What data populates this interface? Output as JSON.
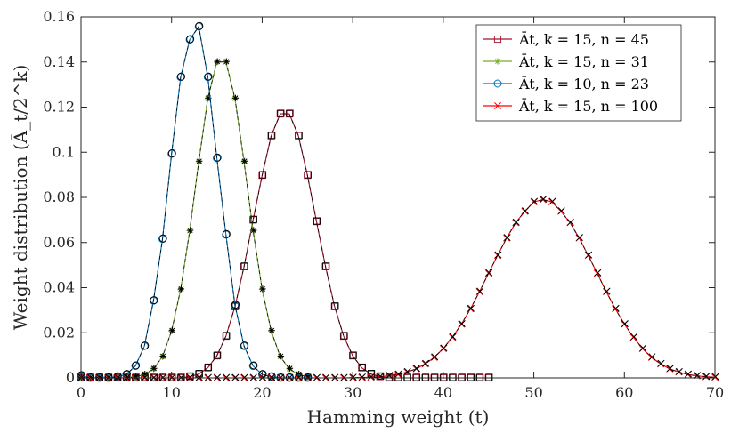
{
  "chart_data": {
    "type": "line",
    "xlabel": "Hamming weight (t)",
    "ylabel": "Weight distribution (Ā_t/2^k)",
    "xlim": [
      0,
      70
    ],
    "ylim": [
      0,
      0.16
    ],
    "xticks": [
      0,
      10,
      20,
      30,
      40,
      50,
      60,
      70
    ],
    "yticks": [
      0,
      0.02,
      0.04,
      0.06,
      0.08,
      0.1,
      0.12,
      0.14,
      0.16
    ],
    "ytick_labels": [
      "0",
      "0.02",
      "0.04",
      "0.06",
      "0.08",
      "0.1",
      "0.12",
      "0.14",
      "0.16"
    ],
    "legend_position": "top-right",
    "series": [
      {
        "name": "Ā_t, k = 15, n = 45",
        "legend_label": "Āt, k = 15, n = 45",
        "color": "#a2142f",
        "marker": "square",
        "x": [
          0,
          1,
          2,
          3,
          4,
          5,
          6,
          7,
          8,
          9,
          10,
          11,
          12,
          13,
          14,
          15,
          16,
          17,
          18,
          19,
          20,
          21,
          22,
          23,
          24,
          25,
          26,
          27,
          28,
          29,
          30,
          31,
          32,
          33,
          34,
          35,
          36,
          37,
          38,
          39,
          40,
          41,
          42,
          43,
          44,
          45
        ],
        "values": [
          0,
          0,
          0,
          0,
          0,
          0,
          0,
          0,
          0,
          0,
          0,
          0,
          0.0006,
          0.0017,
          0.0045,
          0.0098,
          0.0185,
          0.0316,
          0.0493,
          0.07,
          0.0898,
          0.1073,
          0.117,
          0.117,
          0.1073,
          0.0898,
          0.0693,
          0.0493,
          0.0316,
          0.0185,
          0.0098,
          0.0045,
          0.0017,
          0.0006,
          0,
          0,
          0,
          0,
          0,
          0,
          0,
          0,
          0,
          0,
          0,
          0
        ]
      },
      {
        "name": "Ā_t, k = 15, n = 31",
        "legend_label": "Āt, k = 15, n = 31",
        "color": "#77ac30",
        "marker": "asterisk",
        "x": [
          0,
          1,
          2,
          3,
          4,
          5,
          6,
          7,
          8,
          9,
          10,
          11,
          12,
          13,
          14,
          15,
          16,
          17,
          18,
          19,
          20,
          21,
          22,
          23,
          24,
          25
        ],
        "values": [
          0,
          0,
          0,
          0,
          0,
          0,
          0.0005,
          0.0015,
          0.004,
          0.0094,
          0.0208,
          0.0392,
          0.0652,
          0.0958,
          0.1238,
          0.14,
          0.14,
          0.1238,
          0.0958,
          0.0652,
          0.0392,
          0.0208,
          0.0094,
          0.004,
          0.0015,
          0.0005
        ]
      },
      {
        "name": "Ā_t, k = 10, n = 23",
        "legend_label": "Āt, k = 10, n = 23",
        "color": "#0072bd",
        "marker": "circle",
        "x": [
          0,
          1,
          2,
          3,
          4,
          5,
          6,
          7,
          8,
          9,
          10,
          11,
          12,
          13,
          14,
          15,
          16,
          17,
          18,
          19,
          20,
          21,
          22,
          23,
          24,
          25
        ],
        "values": [
          0.001,
          0,
          0,
          0,
          0.0005,
          0.0015,
          0.0053,
          0.0141,
          0.0342,
          0.0616,
          0.0993,
          0.1333,
          0.1499,
          0.1557,
          0.1333,
          0.0974,
          0.0635,
          0.0322,
          0.0141,
          0.0053,
          0.0015,
          0.0005,
          0,
          0,
          0,
          0
        ]
      },
      {
        "name": "Ā_t, k = 15, n = 100",
        "legend_label": "Āt, k = 15, n = 100",
        "color": "#ff0000",
        "marker": "x",
        "x": [
          0,
          1,
          2,
          3,
          4,
          5,
          6,
          7,
          8,
          9,
          10,
          11,
          12,
          13,
          14,
          15,
          16,
          17,
          18,
          19,
          20,
          21,
          22,
          23,
          24,
          25,
          26,
          27,
          28,
          29,
          30,
          31,
          32,
          33,
          34,
          35,
          36,
          37,
          38,
          39,
          40,
          41,
          42,
          43,
          44,
          45,
          46,
          47,
          48,
          49,
          50,
          51,
          52,
          53,
          54,
          55,
          56,
          57,
          58,
          59,
          60,
          61,
          62,
          63,
          64,
          65,
          66,
          67,
          68,
          69,
          70
        ],
        "values": [
          0,
          0,
          0,
          0,
          0,
          0,
          0,
          0,
          0,
          0,
          0,
          0,
          0,
          0,
          0,
          0,
          0,
          0,
          0,
          0,
          0,
          0,
          0,
          0,
          0,
          0,
          0,
          0,
          0,
          0,
          0.0001,
          0.0002,
          0.0003,
          0.0005,
          0.0009,
          0.0015,
          0.0026,
          0.004,
          0.0062,
          0.0091,
          0.013,
          0.018,
          0.0238,
          0.0306,
          0.0382,
          0.0464,
          0.0543,
          0.062,
          0.0688,
          0.0738,
          0.078,
          0.079,
          0.078,
          0.0738,
          0.0688,
          0.062,
          0.0543,
          0.0464,
          0.0382,
          0.0306,
          0.0238,
          0.018,
          0.013,
          0.0091,
          0.0062,
          0.004,
          0.0026,
          0.0015,
          0.0009,
          0.0005,
          0.0003
        ]
      }
    ]
  }
}
